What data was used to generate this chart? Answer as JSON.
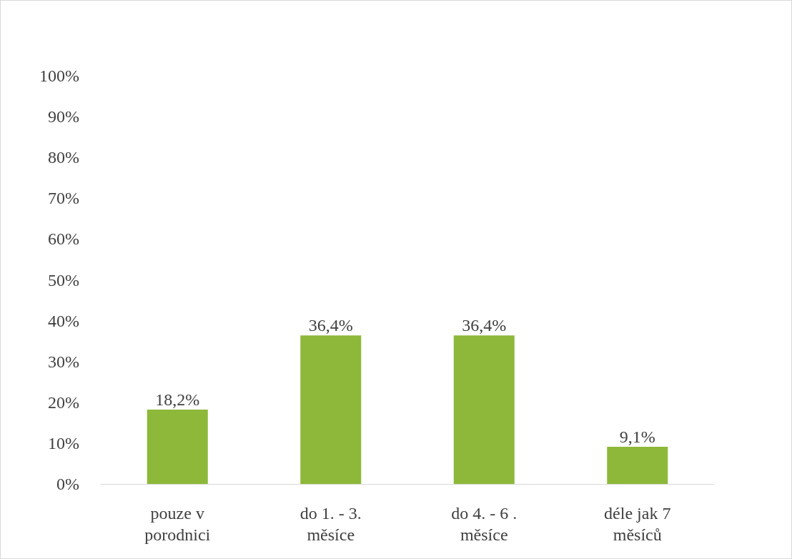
{
  "chart_data": {
    "type": "bar",
    "categories": [
      "pouze v\nporodnici",
      "do 1. - 3.\nměsíce",
      "do 4. - 6 .\nměsíce",
      "déle jak 7\nměsíců"
    ],
    "values": [
      18.2,
      36.4,
      36.4,
      9.1
    ],
    "value_labels": [
      "18,2%",
      "36,4%",
      "36,4%",
      "9,1%"
    ],
    "color": "#8db83a",
    "ylim": [
      0,
      100
    ],
    "yticks": [
      {
        "value": 0,
        "label": "0%"
      },
      {
        "value": 10,
        "label": "10%"
      },
      {
        "value": 20,
        "label": "20%"
      },
      {
        "value": 30,
        "label": "30%"
      },
      {
        "value": 40,
        "label": "40%"
      },
      {
        "value": 50,
        "label": "50%"
      },
      {
        "value": 60,
        "label": "60%"
      },
      {
        "value": 70,
        "label": "70%"
      },
      {
        "value": 80,
        "label": "80%"
      },
      {
        "value": 90,
        "label": "90%"
      },
      {
        "value": 100,
        "label": "100%"
      }
    ],
    "grid": false
  }
}
